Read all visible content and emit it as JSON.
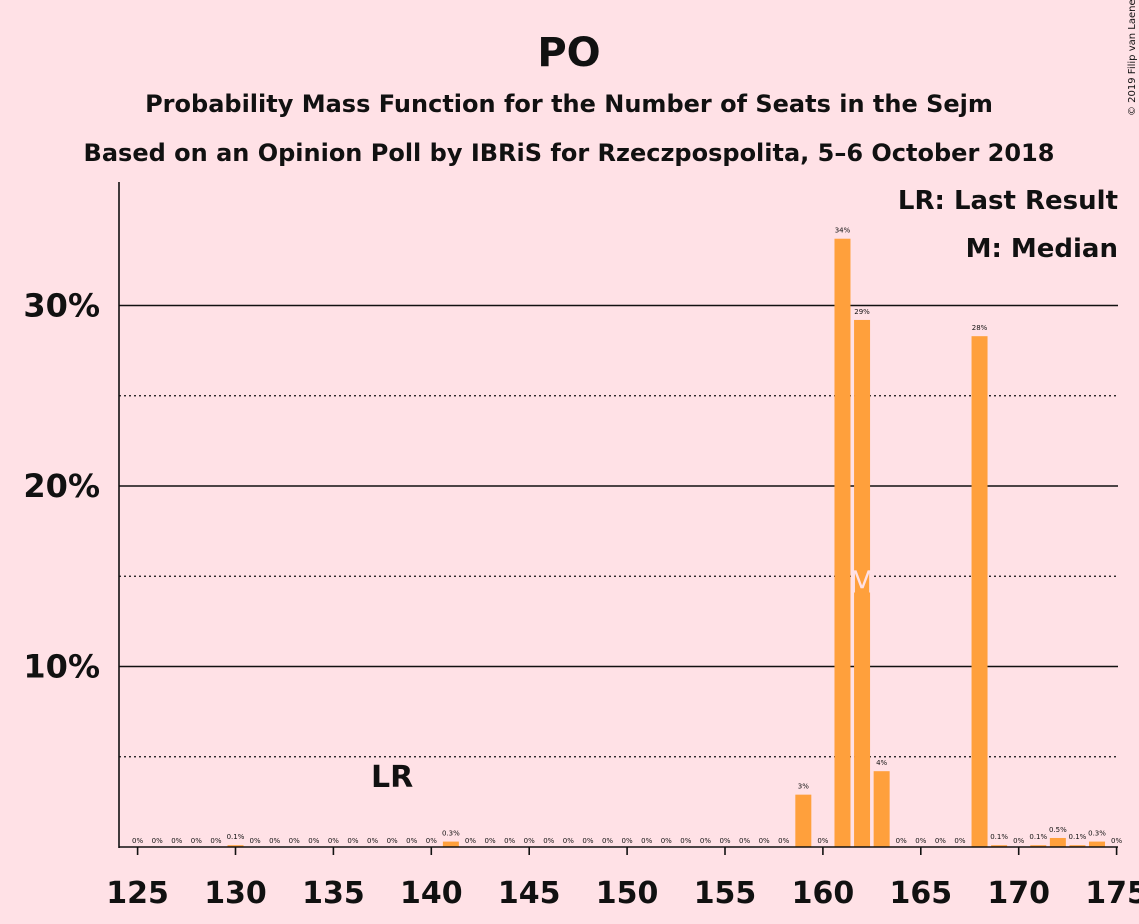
{
  "chart_data": {
    "type": "bar",
    "title": "PO",
    "subtitle_1": "Probability Mass Function for the Number of Seats in the Sejm",
    "subtitle_2": "Based on an Opinion Poll by IBRiS for Rzeczpospolita, 5–6 October 2018",
    "copyright": "© 2019 Filip van Laenen",
    "legend": {
      "last_result": "LR: Last Result",
      "median": "M: Median",
      "placement": "top-right"
    },
    "last_result_marker": {
      "label": "LR",
      "seats": 138
    },
    "median_marker": {
      "label": "M",
      "seats": 162
    },
    "xlim": [
      124.5,
      175.5
    ],
    "ylim": [
      0,
      37
    ],
    "x_ticks": [
      125,
      130,
      135,
      140,
      145,
      150,
      155,
      160,
      165,
      170,
      175
    ],
    "y_ticks": [
      {
        "value": 10,
        "label": "10%"
      },
      {
        "value": 20,
        "label": "20%"
      },
      {
        "value": 30,
        "label": "30%"
      }
    ],
    "minor_gridlines": [
      5,
      15,
      25
    ],
    "bar_color": "#FFA03C",
    "seats": [
      125,
      126,
      127,
      128,
      129,
      130,
      131,
      132,
      133,
      134,
      135,
      136,
      137,
      138,
      139,
      140,
      141,
      142,
      143,
      144,
      145,
      146,
      147,
      148,
      149,
      150,
      151,
      152,
      153,
      154,
      155,
      156,
      157,
      158,
      159,
      160,
      161,
      162,
      163,
      164,
      165,
      166,
      167,
      168,
      169,
      170,
      171,
      172,
      173,
      174,
      175
    ],
    "values": [
      0,
      0,
      0,
      0,
      0,
      0.1,
      0,
      0,
      0,
      0,
      0,
      0,
      0,
      0,
      0,
      0,
      0.3,
      0,
      0,
      0,
      0,
      0,
      0,
      0,
      0,
      0,
      0,
      0,
      0,
      0,
      0,
      0,
      0,
      0,
      2.9,
      0,
      33.7,
      29.2,
      4.2,
      0,
      0,
      0,
      0,
      28.3,
      0.1,
      0,
      0.1,
      0.5,
      0.1,
      0.3,
      0
    ],
    "labels": [
      "0%",
      "0%",
      "0%",
      "0%",
      "0%",
      "0.1%",
      "0%",
      "0%",
      "0%",
      "0%",
      "0%",
      "0%",
      "0%",
      "0%",
      "0%",
      "0%",
      "0.3%",
      "0%",
      "0%",
      "0%",
      "0%",
      "0%",
      "0%",
      "0%",
      "0%",
      "0%",
      "0%",
      "0%",
      "0%",
      "0%",
      "0%",
      "0%",
      "0%",
      "0%",
      "3%",
      "0%",
      "34%",
      "29%",
      "4%",
      "0%",
      "0%",
      "0%",
      "0%",
      "28%",
      "0.1%",
      "0%",
      "0.1%",
      "0.5%",
      "0.1%",
      "0.3%",
      "0%"
    ]
  }
}
